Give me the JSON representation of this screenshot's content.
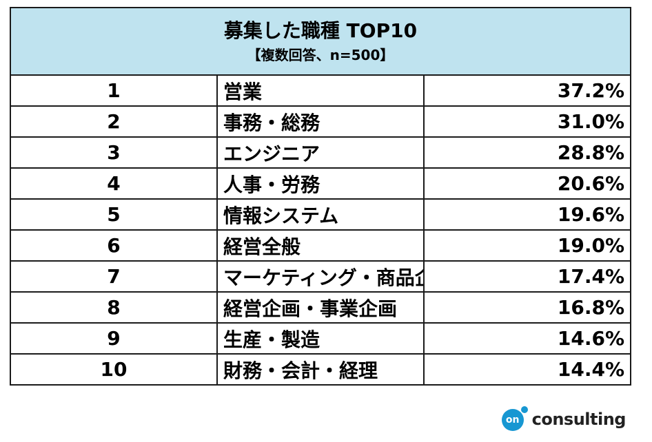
{
  "header": {
    "title": "募集した職種 TOP10",
    "subtitle": "【複数回答、n=500】"
  },
  "rows": [
    {
      "rank": "1",
      "job": "営業",
      "percent": "37.2%"
    },
    {
      "rank": "2",
      "job": "事務・総務",
      "percent": "31.0%"
    },
    {
      "rank": "3",
      "job": "エンジニア",
      "percent": "28.8%"
    },
    {
      "rank": "4",
      "job": "人事・労務",
      "percent": "20.6%"
    },
    {
      "rank": "5",
      "job": "情報システム",
      "percent": "19.6%"
    },
    {
      "rank": "6",
      "job": "経営全般",
      "percent": "19.0%"
    },
    {
      "rank": "7",
      "job": "マーケティング・商品企画・広告宣伝",
      "percent": "17.4%"
    },
    {
      "rank": "8",
      "job": "経営企画・事業企画",
      "percent": "16.8%"
    },
    {
      "rank": "9",
      "job": "生産・製造",
      "percent": "14.6%"
    },
    {
      "rank": "10",
      "job": "財務・会計・経理",
      "percent": "14.4%"
    }
  ],
  "logo": {
    "mark_text": "on",
    "text": "consulting",
    "color": "#1797d2"
  },
  "colors": {
    "header_bg": "#bfe3ef",
    "border": "#1a1a1a"
  }
}
